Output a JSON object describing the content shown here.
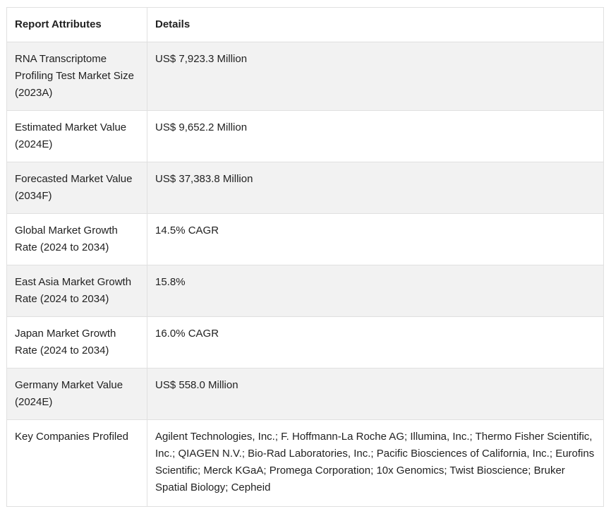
{
  "table": {
    "header": [
      "Report Attributes",
      "Details"
    ],
    "rows": [
      [
        "RNA Transcriptome Profiling Test Market Size (2023A)",
        "US$ 7,923.3 Million"
      ],
      [
        "Estimated Market Value (2024E)",
        "US$ 9,652.2 Million"
      ],
      [
        "Forecasted Market Value (2034F)",
        "US$ 37,383.8 Million"
      ],
      [
        "Global Market Growth Rate (2024 to 2034)",
        "14.5% CAGR"
      ],
      [
        "East Asia Market Growth Rate (2024 to 2034)",
        "15.8%"
      ],
      [
        "Japan Market Growth Rate (2024 to 2034)",
        "16.0% CAGR"
      ],
      [
        "Germany Market Value (2024E)",
        "US$ 558.0 Million"
      ],
      [
        "Key Companies Profiled",
        "Agilent Technologies, Inc.; F. Hoffmann-La Roche AG; Illumina, Inc.; Thermo Fisher Scientific, Inc.; QIAGEN N.V.; Bio-Rad Laboratories, Inc.; Pacific Biosciences of California, Inc.; Eurofins Scientific; Merck KGaA; Promega Corporation; 10x Genomics; Twist Bioscience; Bruker Spatial Biology; Cepheid"
      ]
    ]
  }
}
